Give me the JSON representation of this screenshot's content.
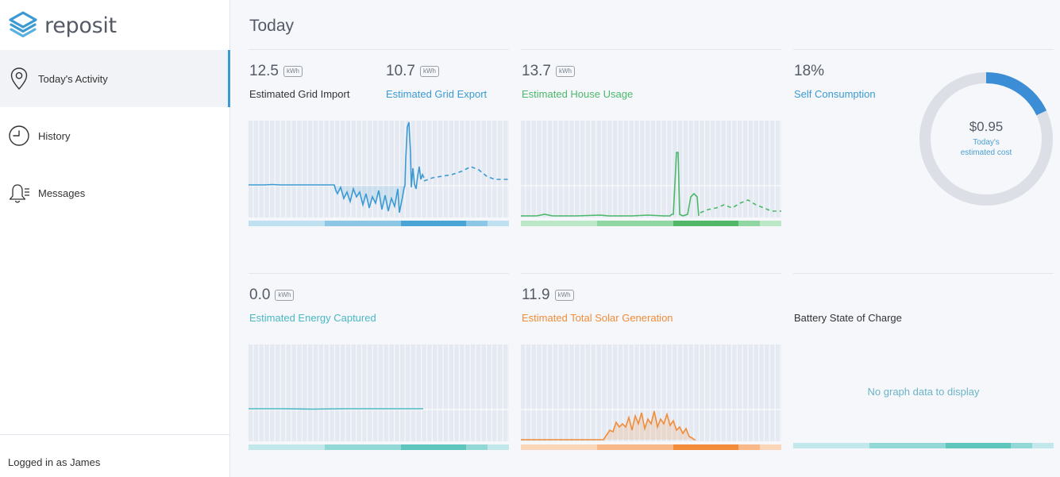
{
  "app": {
    "name": "reposit"
  },
  "sidebar": {
    "items": [
      {
        "label": "Today's Activity",
        "icon": "location-pin-icon",
        "active": true
      },
      {
        "label": "History",
        "icon": "clock-icon",
        "active": false
      },
      {
        "label": "Messages",
        "icon": "bell-icon",
        "active": false
      }
    ],
    "user_prefix": "Logged in as",
    "user_name": "James",
    "logged_text": "Logged in as James"
  },
  "page": {
    "title": "Today"
  },
  "cards": {
    "grid_import": {
      "value": "12.5",
      "unit": "kWh",
      "label": "Estimated Grid Import",
      "color": "#333333"
    },
    "grid_export": {
      "value": "10.7",
      "unit": "kWh",
      "label": "Estimated Grid Export",
      "color": "#3b9ad2"
    },
    "house_usage": {
      "value": "13.7",
      "unit": "kWh",
      "label": "Estimated House Usage",
      "color": "#4cb86a"
    },
    "self_consumption": {
      "value": "18%",
      "label": "Self Consumption",
      "color": "#3b9ad2",
      "fraction": 0.18
    },
    "cost": {
      "value": "$0.95",
      "line1": "Today's",
      "line2": "estimated cost"
    },
    "energy_captured": {
      "value": "0.0",
      "unit": "kWh",
      "label": "Estimated Energy Captured",
      "color": "#4bb8c4"
    },
    "solar_generation": {
      "value": "11.9",
      "unit": "kWh",
      "label": "Estimated Total Solar Generation",
      "color": "#f28c38"
    },
    "battery_state": {
      "label": "Battery State of Charge",
      "no_data": "No graph data to display"
    }
  },
  "colors": {
    "accent": "#3b9ad2",
    "grid": "#3b9ad2",
    "house": "#4cb86a",
    "captured": "#4bb8c4",
    "solar": "#f28c38",
    "battery": "#5ec6bd"
  }
}
